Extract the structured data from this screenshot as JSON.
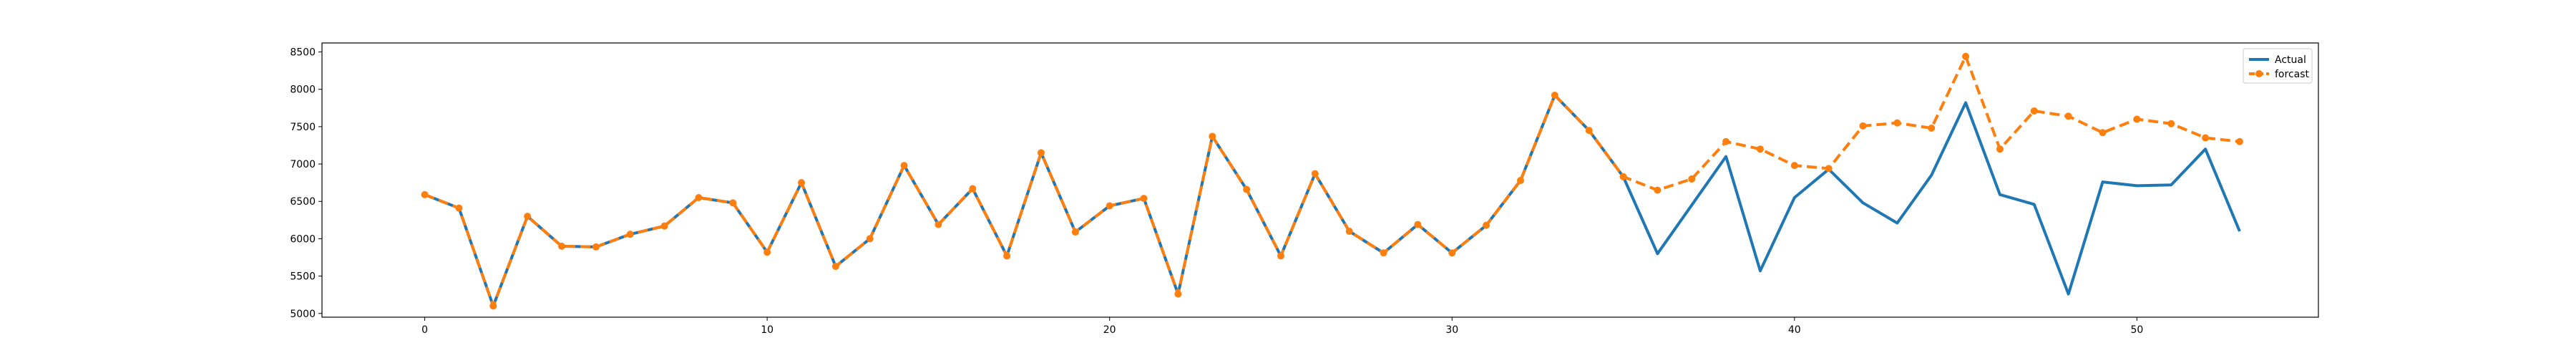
{
  "chart_data": {
    "type": "line",
    "xlim": [
      -3,
      55.3
    ],
    "ylim": [
      4950,
      8620
    ],
    "xticks": [
      0,
      10,
      20,
      30,
      40,
      50
    ],
    "yticks": [
      5000,
      5500,
      6000,
      6500,
      7000,
      7500,
      8000,
      8500
    ],
    "grid": false,
    "legend_position": "top-right",
    "x": [
      0,
      1,
      2,
      3,
      4,
      5,
      6,
      7,
      8,
      9,
      10,
      11,
      12,
      13,
      14,
      15,
      16,
      17,
      18,
      19,
      20,
      21,
      22,
      23,
      24,
      25,
      26,
      27,
      28,
      29,
      30,
      31,
      32,
      33,
      34,
      35,
      36,
      37,
      38,
      39,
      40,
      41,
      42,
      43,
      44,
      45,
      46,
      47,
      48,
      49,
      50,
      51,
      52,
      53
    ],
    "series": [
      {
        "name": "Actual",
        "color": "#1f77b4",
        "style": "solid",
        "values": [
          6590,
          6410,
          5100,
          6300,
          5900,
          5890,
          6060,
          6170,
          6550,
          6480,
          5820,
          6750,
          5630,
          6000,
          6980,
          6190,
          6670,
          5770,
          7150,
          6090,
          6440,
          6540,
          5260,
          7370,
          6660,
          5770,
          6870,
          6100,
          5810,
          6190,
          5810,
          6180,
          6780,
          7920,
          7450,
          6830,
          5800,
          6450,
          7100,
          5570,
          6550,
          6930,
          6480,
          6210,
          6850,
          7820,
          6590,
          6460,
          5260,
          6760,
          6710,
          6720,
          7200,
          6100
        ]
      },
      {
        "name": "forcast",
        "color": "#ff7f0e",
        "style": "dashed",
        "marker": "circle",
        "values": [
          6590,
          6410,
          5100,
          6300,
          5900,
          5890,
          6060,
          6170,
          6550,
          6480,
          5820,
          6750,
          5630,
          6000,
          6980,
          6190,
          6670,
          5770,
          7150,
          6090,
          6440,
          6540,
          5260,
          7370,
          6660,
          5770,
          6870,
          6100,
          5810,
          6190,
          5810,
          6180,
          6780,
          7920,
          7450,
          6830,
          6650,
          6800,
          7300,
          7200,
          6980,
          6940,
          7510,
          7550,
          7480,
          8440,
          7200,
          7710,
          7640,
          7420,
          7600,
          7540,
          7350,
          7300
        ]
      }
    ]
  }
}
